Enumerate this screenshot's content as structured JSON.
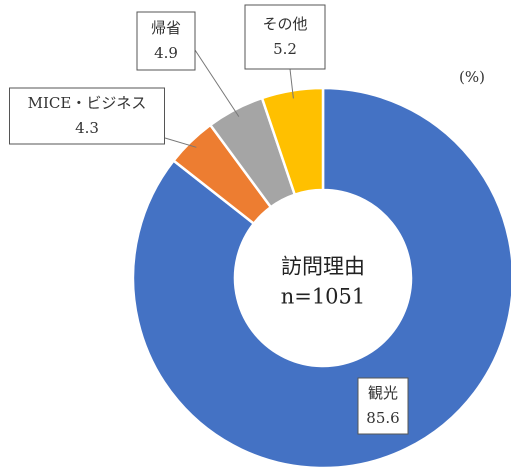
{
  "chart_data": {
    "type": "donut",
    "title": "訪問理由",
    "subtitle": "n=1051",
    "unit_label": "(%)",
    "categories": [
      "観光",
      "MICE・ビジネス",
      "帰省",
      "その他"
    ],
    "values": [
      85.6,
      4.3,
      4.9,
      5.2
    ],
    "colors": [
      "#4472c4",
      "#ed7d31",
      "#a5a5a5",
      "#ffc000"
    ]
  }
}
